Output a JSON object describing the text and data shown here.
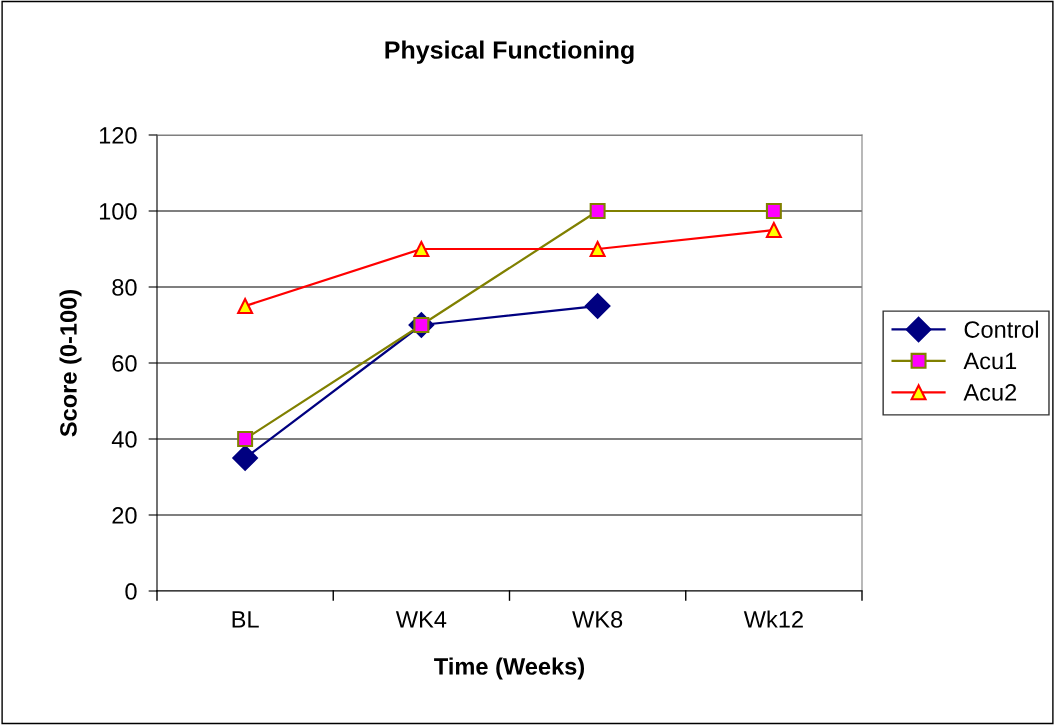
{
  "chart_data": {
    "type": "line",
    "title": "Physical Functioning",
    "xlabel": "Time (Weeks)",
    "ylabel": "Score (0-100)",
    "categories": [
      "BL",
      "WK4",
      "WK8",
      "Wk12"
    ],
    "series": [
      {
        "name": "Control",
        "color": "#000080",
        "marker": "diamond",
        "values": [
          35,
          70,
          75,
          null
        ]
      },
      {
        "name": "Acu1",
        "color": "#808000",
        "marker": "square",
        "values": [
          40,
          70,
          100,
          100
        ]
      },
      {
        "name": "Acu2",
        "color": "#ff0000",
        "marker": "triangle",
        "values": [
          75,
          90,
          90,
          95
        ]
      }
    ],
    "ylim": [
      0,
      120
    ],
    "yticks": [
      0,
      20,
      40,
      60,
      80,
      100,
      120
    ],
    "grid": "y",
    "legend": "right",
    "line_style": "solid"
  }
}
